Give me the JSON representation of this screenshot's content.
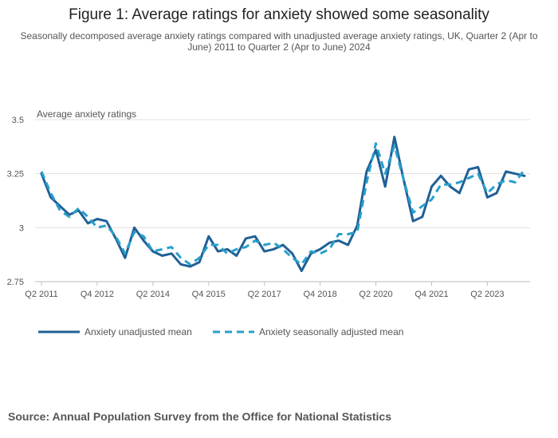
{
  "title": "Figure 1: Average ratings for anxiety showed some seasonality",
  "subtitle": "Seasonally decomposed average anxiety ratings compared with unadjusted average anxiety ratings, UK, Quarter 2 (Apr to June) 2011 to Quarter 2 (Apr to June) 2024",
  "source": "Source: Annual Population Survey from the Office for National Statistics",
  "colors": {
    "unadjusted": "#206095",
    "adjusted": "#27a0cc",
    "grid": "#e0e0e0",
    "axis": "#bebebe"
  },
  "chart_data": {
    "type": "line",
    "title": "Figure 1: Average ratings for anxiety showed some seasonality",
    "ylabel": "Average anxiety ratings",
    "xlabel": "",
    "ylim": [
      2.75,
      3.5
    ],
    "yticks": [
      2.75,
      3,
      3.25,
      3.5
    ],
    "ytick_labels": [
      "2.75",
      "3",
      "3.25",
      "3.5"
    ],
    "xtick_labels": [
      {
        "index": 0,
        "label": "Q2 2011"
      },
      {
        "index": 6,
        "label": "Q4 2012"
      },
      {
        "index": 12,
        "label": "Q2 2014"
      },
      {
        "index": 18,
        "label": "Q4 2015"
      },
      {
        "index": 24,
        "label": "Q2 2017"
      },
      {
        "index": 30,
        "label": "Q4 2018"
      },
      {
        "index": 36,
        "label": "Q2 2020"
      },
      {
        "index": 42,
        "label": "Q4 2021"
      },
      {
        "index": 48,
        "label": "Q2 2023"
      }
    ],
    "x": [
      "Q2 2011",
      "Q3 2011",
      "Q4 2011",
      "Q1 2012",
      "Q2 2012",
      "Q3 2012",
      "Q4 2012",
      "Q1 2013",
      "Q2 2013",
      "Q3 2013",
      "Q4 2013",
      "Q1 2014",
      "Q2 2014",
      "Q3 2014",
      "Q4 2014",
      "Q1 2015",
      "Q2 2015",
      "Q3 2015",
      "Q4 2015",
      "Q1 2016",
      "Q2 2016",
      "Q3 2016",
      "Q4 2016",
      "Q1 2017",
      "Q2 2017",
      "Q3 2017",
      "Q4 2017",
      "Q1 2018",
      "Q2 2018",
      "Q3 2018",
      "Q4 2018",
      "Q1 2019",
      "Q2 2019",
      "Q3 2019",
      "Q4 2019",
      "Q1 2020",
      "Q2 2020",
      "Q3 2020",
      "Q4 2020",
      "Q1 2021",
      "Q2 2021",
      "Q3 2021",
      "Q4 2021",
      "Q1 2022",
      "Q2 2022",
      "Q3 2022",
      "Q4 2022",
      "Q1 2023",
      "Q2 2023",
      "Q3 2023",
      "Q4 2023",
      "Q1 2024",
      "Q2 2024"
    ],
    "series": [
      {
        "name": "Anxiety unadjusted mean",
        "style": "solid",
        "values": [
          3.25,
          3.14,
          3.1,
          3.06,
          3.08,
          3.02,
          3.04,
          3.03,
          2.95,
          2.86,
          3.0,
          2.94,
          2.89,
          2.87,
          2.88,
          2.83,
          2.82,
          2.84,
          2.96,
          2.89,
          2.9,
          2.87,
          2.95,
          2.96,
          2.89,
          2.9,
          2.92,
          2.88,
          2.8,
          2.88,
          2.9,
          2.93,
          2.94,
          2.92,
          3.01,
          3.26,
          3.36,
          3.19,
          3.42,
          3.22,
          3.03,
          3.05,
          3.19,
          3.24,
          3.19,
          3.16,
          3.27,
          3.28,
          3.14,
          3.16,
          3.26,
          3.25,
          3.24
        ]
      },
      {
        "name": "Anxiety seasonally adjusted mean",
        "style": "dashed",
        "values": [
          3.26,
          3.16,
          3.08,
          3.05,
          3.09,
          3.05,
          3.0,
          3.01,
          2.96,
          2.88,
          2.98,
          2.96,
          2.89,
          2.9,
          2.91,
          2.86,
          2.83,
          2.86,
          2.92,
          2.92,
          2.88,
          2.9,
          2.91,
          2.94,
          2.92,
          2.93,
          2.9,
          2.86,
          2.83,
          2.89,
          2.88,
          2.9,
          2.97,
          2.97,
          2.98,
          3.21,
          3.39,
          3.25,
          3.38,
          3.22,
          3.07,
          3.1,
          3.13,
          3.2,
          3.2,
          3.21,
          3.23,
          3.25,
          3.16,
          3.2,
          3.22,
          3.21,
          3.27
        ]
      }
    ],
    "legend": [
      "Anxiety unadjusted mean",
      "Anxiety seasonally adjusted mean"
    ],
    "legend_position": "bottom-left",
    "grid": true
  }
}
